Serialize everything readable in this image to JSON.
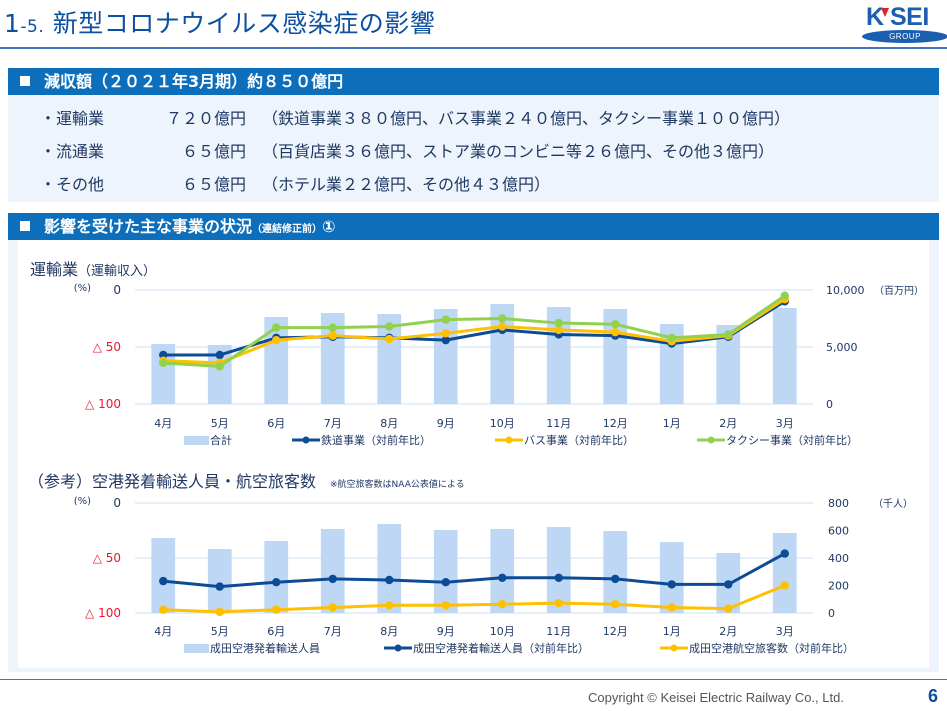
{
  "header": {
    "title_number_main": "1",
    "title_number_sub": "-5.",
    "title_text": "新型コロナウイルス感染症の影響",
    "logo_text": "K SEI",
    "logo_sub": "GROUP"
  },
  "section1": {
    "heading": "減収額（２０２１年3月期）約８５０億円",
    "items": [
      {
        "label": "・運輸業",
        "amount": "７２０億円",
        "detail": "（鉄道事業３８０億円、バス事業２４０億円、タクシー事業１００億円）"
      },
      {
        "label": "・流通業",
        "amount": "　６５億円",
        "detail": "（百貨店業３６億円、ストア業のコンビニ等２６億円、その他３億円）"
      },
      {
        "label": "・その他",
        "amount": "　６５億円",
        "detail": "（ホテル業２２億円、その他４３億円）"
      }
    ]
  },
  "section2": {
    "heading": "影響を受けた主な事業の状況",
    "heading_small": "（連結修正前）",
    "heading_suffix": "①"
  },
  "colors": {
    "bar": "#bdd7f5",
    "railway": "#0d4c94",
    "bus": "#ffc000",
    "taxi": "#92d050",
    "negative_label": "#e8192c",
    "axis_text": "#1f3864",
    "grid": "#d6e6f7"
  },
  "chart_data": [
    {
      "type": "bar+line",
      "title": "運輸業",
      "title_sub": "（運輸収入）",
      "categories": [
        "4月",
        "5月",
        "6月",
        "7月",
        "8月",
        "9月",
        "10月",
        "11月",
        "12月",
        "1月",
        "2月",
        "3月"
      ],
      "left_axis": {
        "unit": "(%)",
        "range": [
          -100,
          0
        ],
        "ticks": [
          {
            "value": 0,
            "label": "0"
          },
          {
            "value": -50,
            "label": "△ 50"
          },
          {
            "value": -100,
            "label": "△ 100"
          }
        ]
      },
      "right_axis": {
        "unit": "（百万円）",
        "range": [
          0,
          10000
        ],
        "ticks": [
          {
            "value": 10000,
            "label": "10,000"
          },
          {
            "value": 5000,
            "label": "5,000"
          },
          {
            "value": 0,
            "label": "0"
          }
        ]
      },
      "grid": true,
      "legend_position": "bottom",
      "bars": {
        "name": "合計",
        "axis": "right",
        "values": [
          5260,
          5180,
          7630,
          7980,
          7890,
          8330,
          8770,
          8510,
          8330,
          7020,
          6930,
          8420
        ]
      },
      "series": [
        {
          "name": "鉄道事業（対前年比）",
          "axis": "left",
          "color_key": "railway",
          "values": [
            -57,
            -57,
            -42,
            -41,
            -42,
            -44,
            -35,
            -39,
            -40,
            -47,
            -41,
            -10
          ]
        },
        {
          "name": "バス事業（対前年比）",
          "axis": "left",
          "color_key": "bus",
          "values": [
            -62,
            -64,
            -44,
            -40,
            -43,
            -38,
            -32,
            -35,
            -37,
            -45,
            -40,
            -8
          ]
        },
        {
          "name": "タクシー事業（対前年比）",
          "axis": "left",
          "color_key": "taxi",
          "values": [
            -64,
            -67,
            -33,
            -33,
            -32,
            -26,
            -25,
            -29,
            -30,
            -42,
            -39,
            -5
          ]
        }
      ]
    },
    {
      "type": "bar+line",
      "title": "（参考）空港発着輸送人員・航空旅客数",
      "note": "※航空旅客数はNAA公表値による",
      "categories": [
        "4月",
        "5月",
        "6月",
        "7月",
        "8月",
        "9月",
        "10月",
        "11月",
        "12月",
        "1月",
        "2月",
        "3月"
      ],
      "left_axis": {
        "unit": "(%)",
        "range": [
          -100,
          0
        ],
        "ticks": [
          {
            "value": 0,
            "label": "0"
          },
          {
            "value": -50,
            "label": "△ 50"
          },
          {
            "value": -100,
            "label": "△ 100"
          }
        ]
      },
      "right_axis": {
        "unit": "（千人）",
        "range": [
          0,
          800
        ],
        "ticks": [
          {
            "value": 800,
            "label": "800"
          },
          {
            "value": 600,
            "label": "600"
          },
          {
            "value": 400,
            "label": "400"
          },
          {
            "value": 200,
            "label": "200"
          },
          {
            "value": 0,
            "label": "0"
          }
        ]
      },
      "grid": true,
      "legend_position": "bottom",
      "bars": {
        "name": "成田空港発着輸送人員",
        "axis": "right",
        "values": [
          545,
          465,
          524,
          611,
          647,
          604,
          611,
          625,
          596,
          516,
          436,
          582
        ]
      },
      "series": [
        {
          "name": "成田空港発着輸送人員（対前年比）",
          "axis": "left",
          "color_key": "railway",
          "values": [
            -71,
            -76,
            -72,
            -69,
            -70,
            -72,
            -68,
            -68,
            -69,
            -74,
            -74,
            -46
          ]
        },
        {
          "name": "成田空港航空旅客数（対前年比）",
          "axis": "left",
          "color_key": "bus",
          "values": [
            -97,
            -99,
            -97,
            -95,
            -93,
            -93,
            -92,
            -91,
            -92,
            -95,
            -96,
            -75
          ]
        }
      ]
    }
  ],
  "footer": {
    "copyright": "Copyright ©  Keisei Electric Railway Co., Ltd.",
    "page_number": "6"
  }
}
